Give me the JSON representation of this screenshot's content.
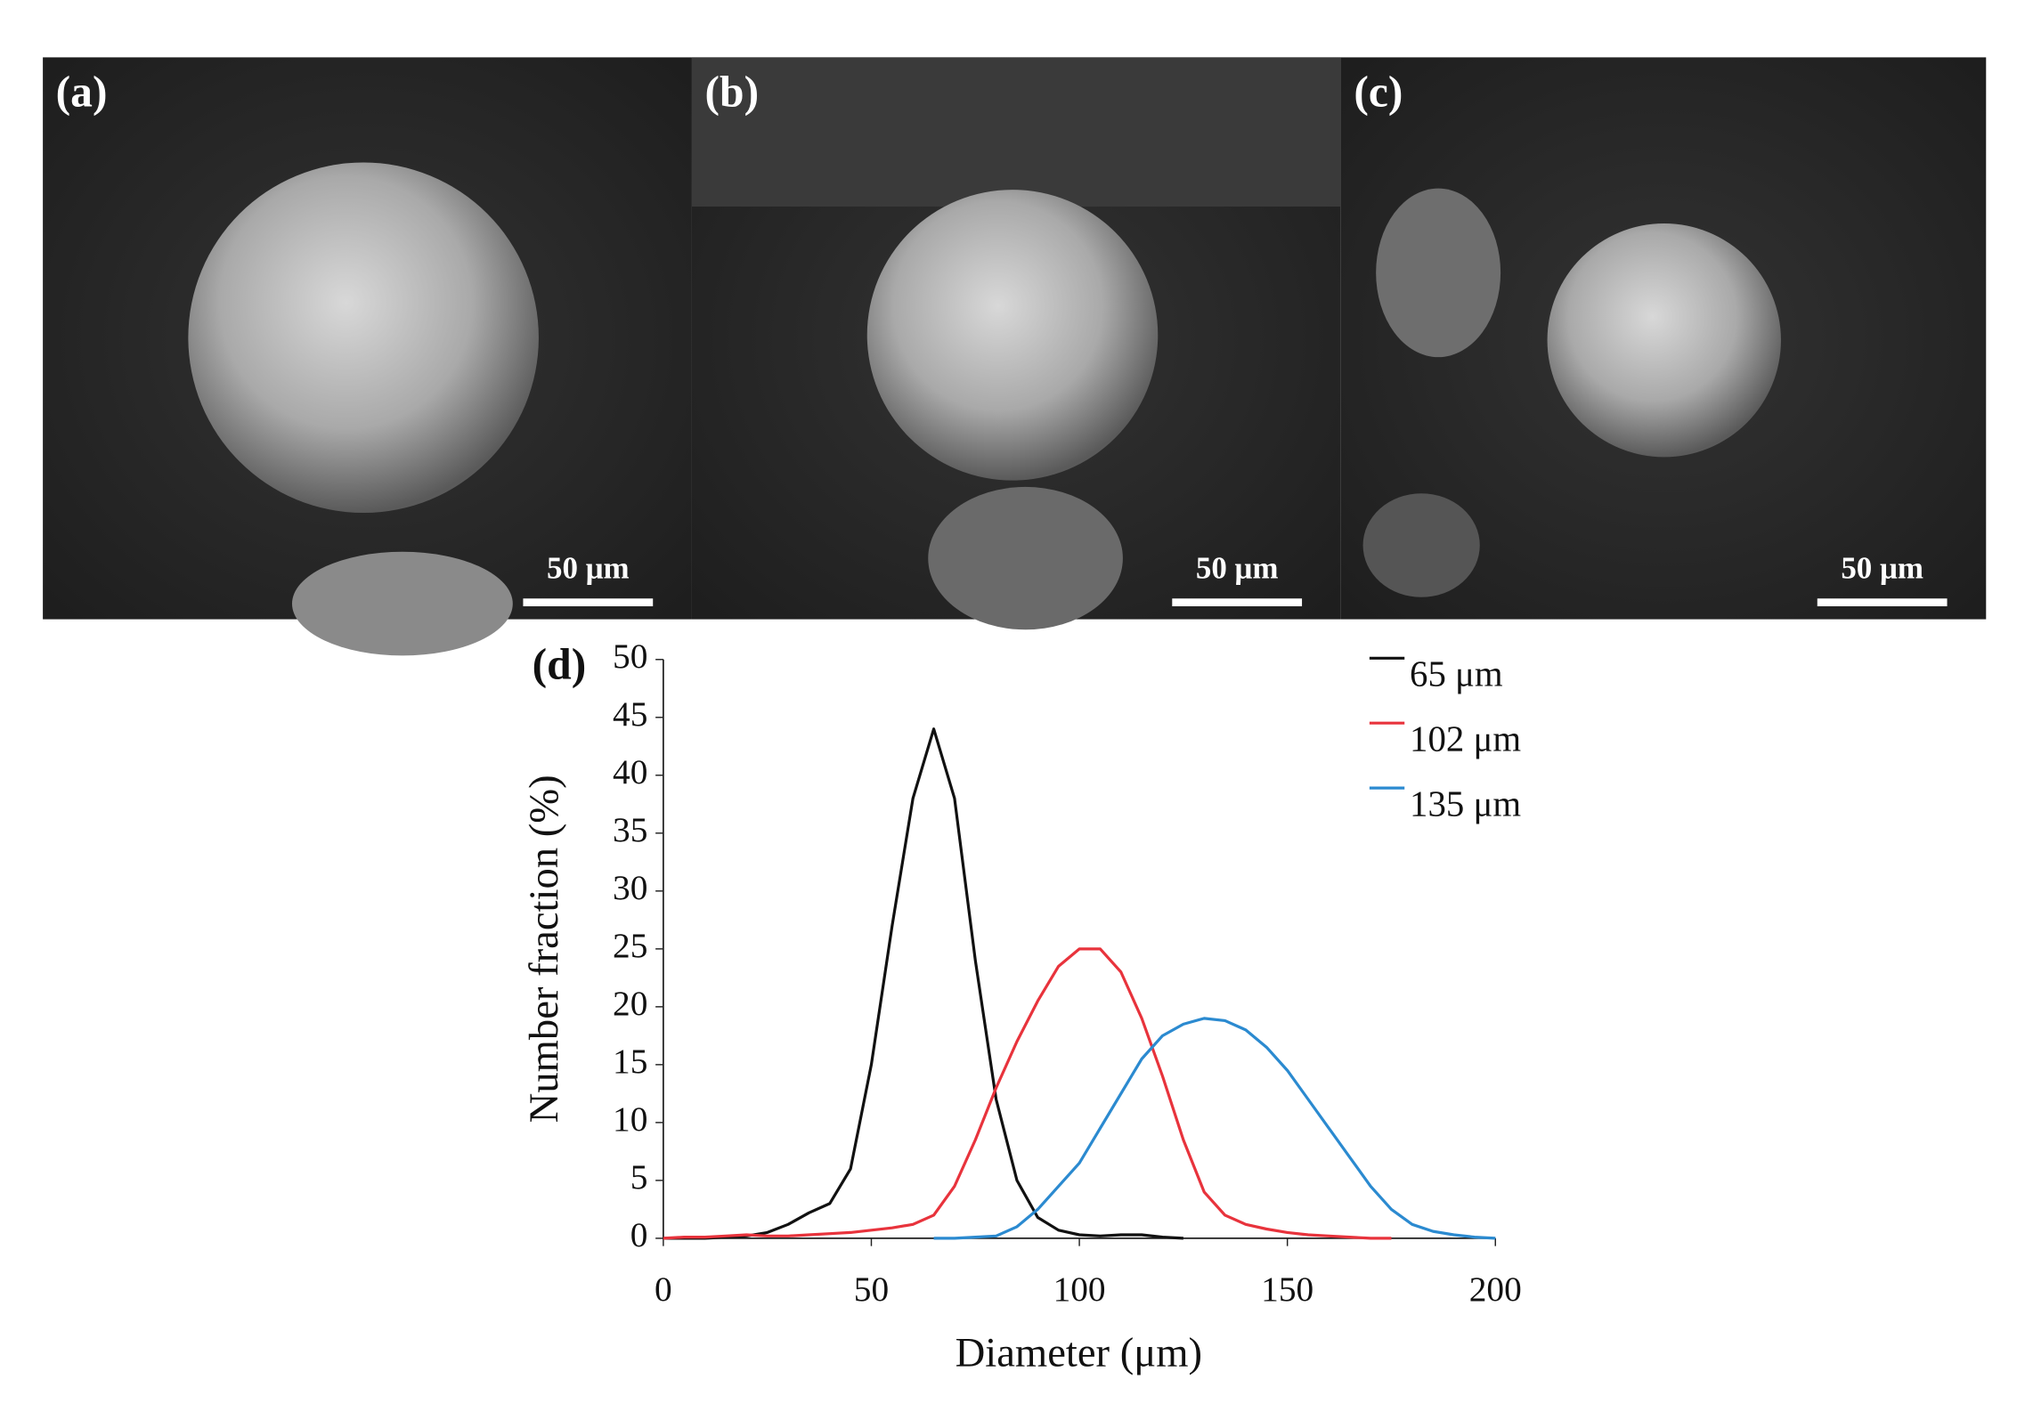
{
  "panels": [
    {
      "label": "(a)",
      "scale_bar": "50 μm"
    },
    {
      "label": "(b)",
      "scale_bar": "50 μm"
    },
    {
      "label": "(c)",
      "scale_bar": "50 μm"
    }
  ],
  "chart_data": {
    "type": "line",
    "panel_label": "(d)",
    "x_label": "Diameter (μm)",
    "y_label": "Number fraction (%)",
    "xlim": [
      0,
      200
    ],
    "xticks": [
      0,
      50,
      100,
      150,
      200
    ],
    "ylim": [
      0,
      50
    ],
    "yticks": [
      0,
      5,
      10,
      15,
      20,
      25,
      30,
      35,
      40,
      45,
      50
    ],
    "legend": "top-right",
    "x": [
      0,
      5,
      10,
      15,
      20,
      25,
      30,
      35,
      40,
      45,
      50,
      55,
      60,
      65,
      70,
      75,
      80,
      85,
      90,
      95,
      100,
      105,
      110,
      115,
      120,
      125,
      130,
      135,
      140,
      145,
      150,
      155,
      160,
      165,
      170,
      175,
      180,
      185,
      190,
      195,
      200
    ],
    "series": [
      {
        "name": "65 μm",
        "color": "#111111",
        "values": [
          0,
          0,
          0,
          0.1,
          0.2,
          0.5,
          1.2,
          2.2,
          3,
          6,
          15,
          27,
          38,
          44,
          38,
          24,
          12,
          5,
          1.8,
          0.7,
          0.3,
          0.2,
          0.3,
          0.3,
          0.1,
          0,
          null,
          null,
          null,
          null,
          null,
          null,
          null,
          null,
          null,
          null,
          null,
          null,
          null,
          null,
          null
        ]
      },
      {
        "name": "102 μm",
        "color": "#e8333c",
        "values": [
          0,
          0.1,
          0.1,
          0.2,
          0.3,
          0.2,
          0.2,
          0.3,
          0.4,
          0.5,
          0.7,
          0.9,
          1.2,
          2,
          4.5,
          8.5,
          13,
          17,
          20.5,
          23.5,
          25,
          25,
          23,
          19,
          14,
          8.5,
          4,
          2,
          1.2,
          0.8,
          0.5,
          0.3,
          0.2,
          0.1,
          0,
          0,
          null,
          null,
          null,
          null,
          null
        ]
      },
      {
        "name": "135 μm",
        "color": "#2b8ad0",
        "values": [
          null,
          null,
          null,
          null,
          null,
          null,
          null,
          null,
          null,
          null,
          null,
          null,
          null,
          0,
          0,
          0.1,
          0.2,
          1,
          2.5,
          4.5,
          6.5,
          9.5,
          12.5,
          15.5,
          17.5,
          18.5,
          19,
          18.8,
          18,
          16.5,
          14.5,
          12,
          9.5,
          7,
          4.5,
          2.5,
          1.2,
          0.6,
          0.3,
          0.1,
          0
        ]
      }
    ]
  }
}
